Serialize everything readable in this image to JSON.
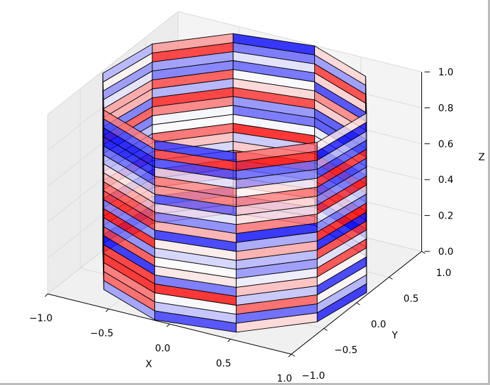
{
  "chart_data": {
    "type": "surface3d",
    "title": "",
    "shape": "cylinder",
    "sides": 10,
    "bands": 20,
    "radius": 1.0,
    "height": 1.0,
    "colormap": "bwr",
    "color_seed": 7,
    "facet_alpha": 0.78,
    "xlabel": "X",
    "ylabel": "Y",
    "zlabel": "Z",
    "xlim": [
      -1,
      1
    ],
    "ylim": [
      -1,
      1
    ],
    "zlim": [
      0,
      1
    ],
    "xticks": [
      "−1.0",
      "−0.5",
      "0.0",
      "0.5",
      "1.0"
    ],
    "yticks": [
      "−1.0",
      "−0.5",
      "0.0",
      "0.5",
      "1.0"
    ],
    "zticks": [
      "0.0",
      "0.2",
      "0.4",
      "0.6",
      "0.8",
      "1.0"
    ],
    "xtick_values": [
      -1,
      -0.5,
      0,
      0.5,
      1
    ],
    "ytick_values": [
      -1,
      -0.5,
      0,
      0.5,
      1
    ],
    "ztick_values": [
      0,
      0.2,
      0.4,
      0.6,
      0.8,
      1
    ],
    "grid": true,
    "pane_color": "#f2f2f2"
  }
}
